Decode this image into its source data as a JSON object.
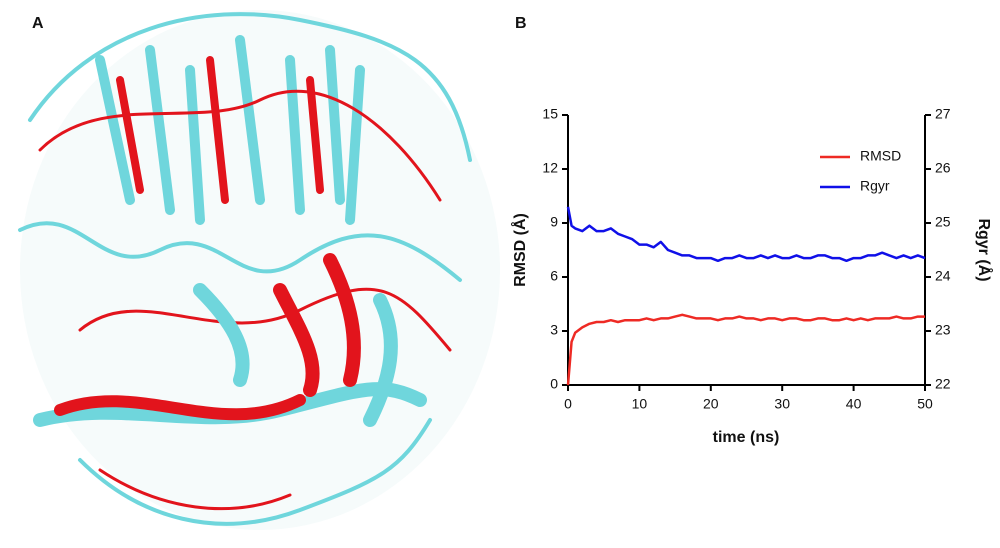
{
  "panel_labels": [
    "A",
    "B"
  ],
  "chart_data": {
    "type": "line",
    "xlabel": "time (ns)",
    "ylabel": "RMSD (Å)",
    "y2label": "Rgyr (Å)",
    "x": [
      0,
      0.5,
      1,
      2,
      3,
      4,
      5,
      6,
      7,
      8,
      9,
      10,
      11,
      12,
      13,
      14,
      15,
      16,
      17,
      18,
      19,
      20,
      21,
      22,
      23,
      24,
      25,
      26,
      27,
      28,
      29,
      30,
      31,
      32,
      33,
      34,
      35,
      36,
      37,
      38,
      39,
      40,
      41,
      42,
      43,
      44,
      45,
      46,
      47,
      48,
      49,
      50
    ],
    "series": [
      {
        "name": "RMSD",
        "color": "#ee2a24",
        "axis": "y",
        "values": [
          0,
          2.4,
          2.9,
          3.2,
          3.4,
          3.5,
          3.5,
          3.6,
          3.5,
          3.6,
          3.6,
          3.6,
          3.7,
          3.6,
          3.7,
          3.7,
          3.8,
          3.9,
          3.8,
          3.7,
          3.7,
          3.7,
          3.6,
          3.7,
          3.7,
          3.8,
          3.7,
          3.7,
          3.6,
          3.7,
          3.7,
          3.6,
          3.7,
          3.7,
          3.6,
          3.6,
          3.7,
          3.7,
          3.6,
          3.6,
          3.7,
          3.6,
          3.7,
          3.6,
          3.7,
          3.7,
          3.7,
          3.8,
          3.7,
          3.7,
          3.8,
          3.8
        ]
      },
      {
        "name": "Rgyr",
        "color": "#1010e8",
        "axis": "y2",
        "values": [
          25.3,
          24.95,
          24.9,
          24.85,
          24.95,
          24.85,
          24.85,
          24.9,
          24.8,
          24.75,
          24.7,
          24.6,
          24.6,
          24.55,
          24.65,
          24.5,
          24.45,
          24.4,
          24.4,
          24.35,
          24.35,
          24.35,
          24.3,
          24.35,
          24.35,
          24.4,
          24.35,
          24.35,
          24.4,
          24.35,
          24.4,
          24.35,
          24.35,
          24.4,
          24.35,
          24.35,
          24.4,
          24.4,
          24.35,
          24.35,
          24.3,
          24.35,
          24.35,
          24.4,
          24.4,
          24.45,
          24.4,
          24.35,
          24.4,
          24.35,
          24.4,
          24.35
        ]
      }
    ],
    "xlim": [
      0,
      50
    ],
    "xticks": [
      0,
      10,
      20,
      30,
      40,
      50
    ],
    "ylim": [
      0,
      15
    ],
    "yticks": [
      0,
      3,
      6,
      9,
      12,
      15
    ],
    "y2lim": [
      22,
      27
    ],
    "y2ticks": [
      22,
      23,
      24,
      25,
      26,
      27
    ],
    "legend": "upper right",
    "grid": false
  }
}
